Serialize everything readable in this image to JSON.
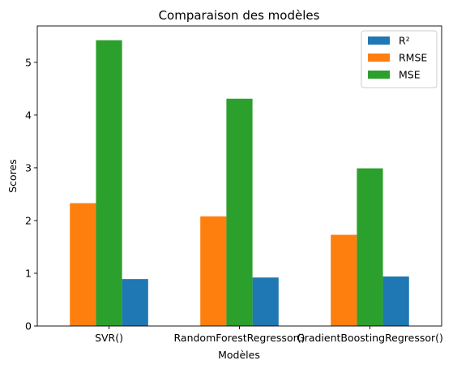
{
  "chart_data": {
    "type": "bar",
    "title": "Comparaison des modèles",
    "xlabel": "Modèles",
    "ylabel": "Scores",
    "categories": [
      "SVR()",
      "RandomForestRegressor()",
      "GradientBoostingRegressor()"
    ],
    "series": [
      {
        "name": "R²",
        "values": [
          0.89,
          0.92,
          0.94
        ],
        "color": "#1f77b4"
      },
      {
        "name": "RMSE",
        "values": [
          2.33,
          2.08,
          1.73
        ],
        "color": "#ff7f0e"
      },
      {
        "name": "MSE",
        "values": [
          5.42,
          4.31,
          2.99
        ],
        "color": "#2ca02c"
      }
    ],
    "ylim": [
      0,
      5.69
    ],
    "yticks": [
      0,
      1,
      2,
      3,
      4,
      5
    ],
    "grid": false,
    "legend_position": "top-right"
  }
}
